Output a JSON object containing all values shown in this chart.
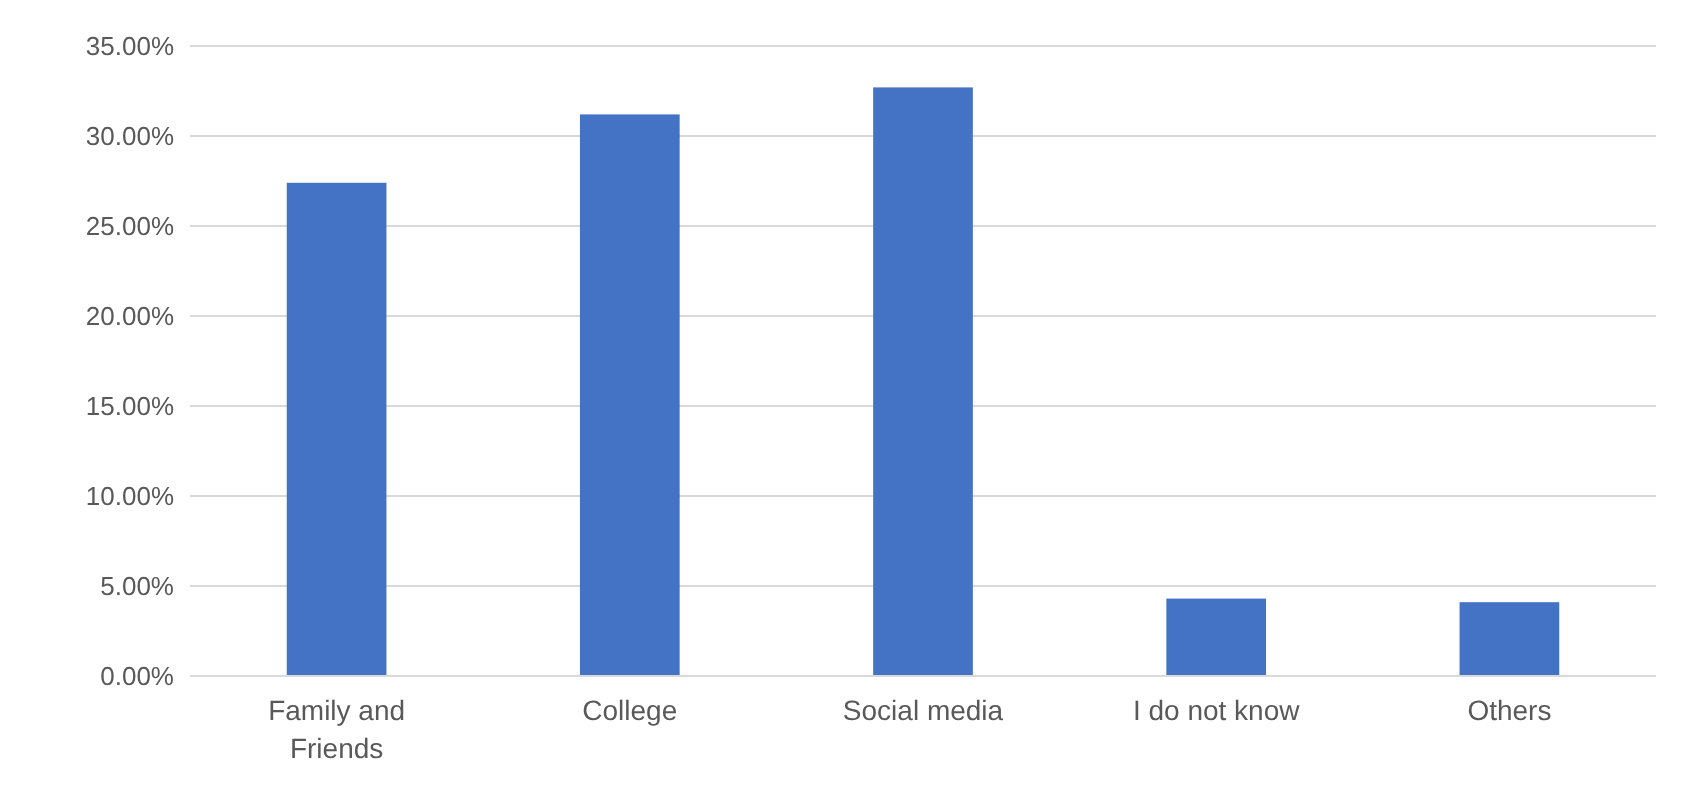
{
  "chart_data": {
    "type": "bar",
    "categories": [
      "Family and Friends",
      "College",
      "Social media",
      "I do not know",
      "Others"
    ],
    "values": [
      27.4,
      31.2,
      32.7,
      4.3,
      4.1
    ],
    "color": "#4472c4",
    "ylim": [
      0,
      35
    ],
    "yticks": [
      {
        "value": 0,
        "label": "0.00%"
      },
      {
        "value": 5,
        "label": "5.00%"
      },
      {
        "value": 10,
        "label": "10.00%"
      },
      {
        "value": 15,
        "label": "15.00%"
      },
      {
        "value": 20,
        "label": "20.00%"
      },
      {
        "value": 25,
        "label": "25.00%"
      },
      {
        "value": 30,
        "label": "30.00%"
      },
      {
        "value": 35,
        "label": "35.00%"
      }
    ],
    "grid": true
  }
}
